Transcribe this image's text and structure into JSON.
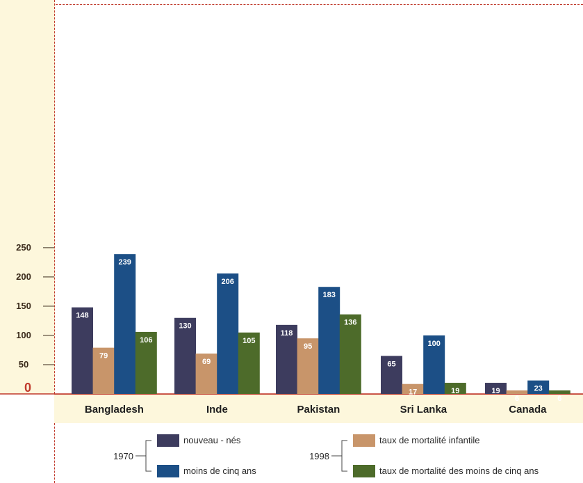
{
  "chart_data": {
    "type": "bar",
    "categories": [
      "Bangladesh",
      "Inde",
      "Pakistan",
      "Sri Lanka",
      "Canada"
    ],
    "series": [
      {
        "name": "nouveau - nés",
        "group": "1970",
        "color": "#3d3c5e",
        "values": [
          148,
          130,
          118,
          65,
          19
        ]
      },
      {
        "name": "taux de mortalité infantile",
        "group": "1998",
        "color": "#c8956a",
        "values": [
          79,
          69,
          95,
          17,
          6
        ]
      },
      {
        "name": "moins de cinq ans",
        "group": "1970",
        "color": "#1c4f86",
        "values": [
          239,
          206,
          183,
          100,
          23
        ]
      },
      {
        "name": "taux de mortalité des moins de cinq ans",
        "group": "1998",
        "color": "#4d6b2a",
        "values": [
          106,
          105,
          136,
          19,
          6
        ]
      }
    ],
    "y_ticks": [
      "250",
      "200",
      "150",
      "100",
      "50",
      "0"
    ],
    "ylim": [
      0,
      250
    ],
    "legend_groups": [
      "1970",
      "1998"
    ],
    "zero_color": "#c0392b"
  }
}
